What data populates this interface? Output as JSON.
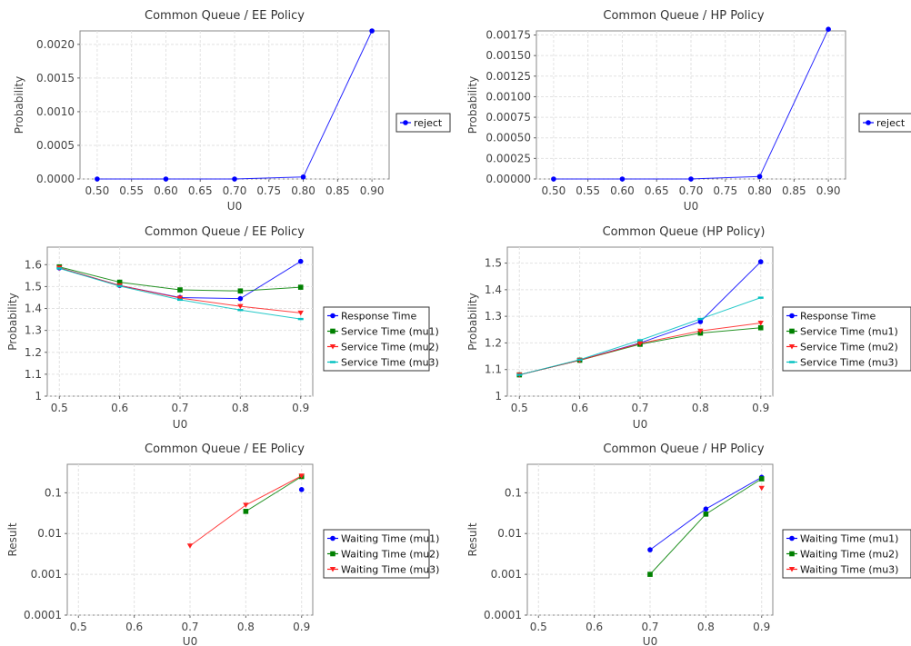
{
  "chart_data": [
    {
      "type": "line",
      "title": "Common Queue / EE Policy",
      "xlabel": "U0",
      "ylabel": "Probability",
      "scale": "linear",
      "xlim": [
        0.475,
        0.925
      ],
      "ylim": [
        0,
        0.0022
      ],
      "xticks": [
        "0.50",
        "0.55",
        "0.60",
        "0.65",
        "0.70",
        "0.75",
        "0.80",
        "0.85",
        "0.90"
      ],
      "yticks": [
        "0.0000",
        "0.0005",
        "0.0010",
        "0.0015",
        "0.0020"
      ],
      "x": [
        0.5,
        0.6,
        0.7,
        0.8,
        0.9
      ],
      "grid": true,
      "legend": "right",
      "series": [
        {
          "name": "reject",
          "color": "#0000ff",
          "marker": "circle",
          "values": [
            0,
            0,
            0,
            3e-05,
            0.0022
          ]
        }
      ]
    },
    {
      "type": "line",
      "title": "Common Queue / HP Policy",
      "xlabel": "U0",
      "ylabel": "Probability",
      "scale": "linear",
      "xlim": [
        0.475,
        0.925
      ],
      "ylim": [
        0,
        0.0018
      ],
      "xticks": [
        "0.50",
        "0.55",
        "0.60",
        "0.65",
        "0.70",
        "0.75",
        "0.80",
        "0.85",
        "0.90"
      ],
      "yticks": [
        "0.00000",
        "0.00025",
        "0.00050",
        "0.00075",
        "0.00100",
        "0.00125",
        "0.00150",
        "0.00175"
      ],
      "x": [
        0.5,
        0.6,
        0.7,
        0.8,
        0.9
      ],
      "grid": true,
      "legend": "right",
      "series": [
        {
          "name": "reject",
          "color": "#0000ff",
          "marker": "circle",
          "values": [
            0,
            0,
            0,
            3e-05,
            0.00182
          ]
        }
      ]
    },
    {
      "type": "line",
      "title": "Common Queue / EE Policy",
      "xlabel": "U0",
      "ylabel": "Probability",
      "scale": "linear",
      "xlim": [
        0.48,
        0.92
      ],
      "ylim": [
        1.0,
        1.68
      ],
      "xticks": [
        "0.5",
        "0.6",
        "0.7",
        "0.8",
        "0.9"
      ],
      "yticks": [
        "1",
        "1.1",
        "1.2",
        "1.3",
        "1.4",
        "1.5",
        "1.6"
      ],
      "x": [
        0.5,
        0.6,
        0.7,
        0.8,
        0.9
      ],
      "grid": true,
      "legend": "right",
      "series": [
        {
          "name": "Response Time",
          "color": "#0000ff",
          "marker": "circle",
          "values": [
            1.585,
            1.505,
            1.45,
            1.445,
            1.615
          ]
        },
        {
          "name": "Service Time (mu1)",
          "color": "#008000",
          "marker": "square",
          "values": [
            1.59,
            1.52,
            1.485,
            1.48,
            1.497
          ]
        },
        {
          "name": "Service Time (mu2)",
          "color": "#ff2020",
          "marker": "triangle",
          "values": [
            1.585,
            1.505,
            1.448,
            1.41,
            1.38
          ]
        },
        {
          "name": "Service Time (mu3)",
          "color": "#00c0c0",
          "marker": "dash",
          "values": [
            1.583,
            1.502,
            1.44,
            1.393,
            1.352
          ]
        }
      ]
    },
    {
      "type": "line",
      "title": "Common Queue (HP Policy)",
      "xlabel": "U0",
      "ylabel": "Probability",
      "scale": "linear",
      "xlim": [
        0.48,
        0.92
      ],
      "ylim": [
        1.0,
        1.56
      ],
      "xticks": [
        "0.5",
        "0.6",
        "0.7",
        "0.8",
        "0.9"
      ],
      "yticks": [
        "1",
        "1.1",
        "1.2",
        "1.3",
        "1.4",
        "1.5"
      ],
      "x": [
        0.5,
        0.6,
        0.7,
        0.8,
        0.9
      ],
      "grid": true,
      "legend": "right",
      "series": [
        {
          "name": "Response Time",
          "color": "#0000ff",
          "marker": "circle",
          "values": [
            1.08,
            1.135,
            1.2,
            1.28,
            1.505
          ]
        },
        {
          "name": "Service Time (mu1)",
          "color": "#008000",
          "marker": "square",
          "values": [
            1.08,
            1.135,
            1.195,
            1.237,
            1.257
          ]
        },
        {
          "name": "Service Time (mu2)",
          "color": "#ff2020",
          "marker": "triangle",
          "values": [
            1.08,
            1.135,
            1.198,
            1.245,
            1.275
          ]
        },
        {
          "name": "Service Time (mu3)",
          "color": "#00c0c0",
          "marker": "dash",
          "values": [
            1.08,
            1.137,
            1.21,
            1.29,
            1.37
          ]
        }
      ]
    },
    {
      "type": "line",
      "title": "Common Queue / EE Policy",
      "xlabel": "U0",
      "ylabel": "Result",
      "scale": "log",
      "xlim": [
        0.48,
        0.92
      ],
      "ylim": [
        0.0001,
        0.5
      ],
      "xticks": [
        "0.5",
        "0.6",
        "0.7",
        "0.8",
        "0.9"
      ],
      "yticks": [
        "0.0001",
        "0.001",
        "0.01",
        "0.1"
      ],
      "ytick_values": [
        0.0001,
        0.001,
        0.01,
        0.1
      ],
      "x": [
        0.5,
        0.6,
        0.7,
        0.8,
        0.9
      ],
      "grid": true,
      "legend": "right",
      "series": [
        {
          "name": "Waiting Time (mu1)",
          "color": "#0000ff",
          "marker": "circle",
          "values": [
            null,
            null,
            null,
            null,
            0.12
          ]
        },
        {
          "name": "Waiting Time (mu2)",
          "color": "#008000",
          "marker": "square",
          "values": [
            null,
            null,
            null,
            0.035,
            0.25
          ]
        },
        {
          "name": "Waiting Time (mu3)",
          "color": "#ff2020",
          "marker": "triangle",
          "values": [
            null,
            null,
            0.005,
            0.05,
            0.26
          ]
        }
      ]
    },
    {
      "type": "line",
      "title": "Common Queue / HP Policy",
      "xlabel": "U0",
      "ylabel": "Result",
      "scale": "log",
      "xlim": [
        0.48,
        0.92
      ],
      "ylim": [
        0.0001,
        0.5
      ],
      "xticks": [
        "0.5",
        "0.6",
        "0.7",
        "0.8",
        "0.9"
      ],
      "yticks": [
        "0.0001",
        "0.001",
        "0.01",
        "0.1"
      ],
      "ytick_values": [
        0.0001,
        0.001,
        0.01,
        0.1
      ],
      "x": [
        0.5,
        0.6,
        0.7,
        0.8,
        0.9
      ],
      "grid": true,
      "legend": "right",
      "series": [
        {
          "name": "Waiting Time (mu1)",
          "color": "#0000ff",
          "marker": "circle",
          "values": [
            null,
            null,
            0.004,
            0.04,
            0.24
          ]
        },
        {
          "name": "Waiting Time (mu2)",
          "color": "#008000",
          "marker": "square",
          "values": [
            null,
            null,
            0.001,
            0.03,
            0.22
          ]
        },
        {
          "name": "Waiting Time (mu3)",
          "color": "#ff2020",
          "marker": "triangle",
          "values": [
            null,
            null,
            null,
            null,
            0.13
          ]
        }
      ]
    }
  ]
}
